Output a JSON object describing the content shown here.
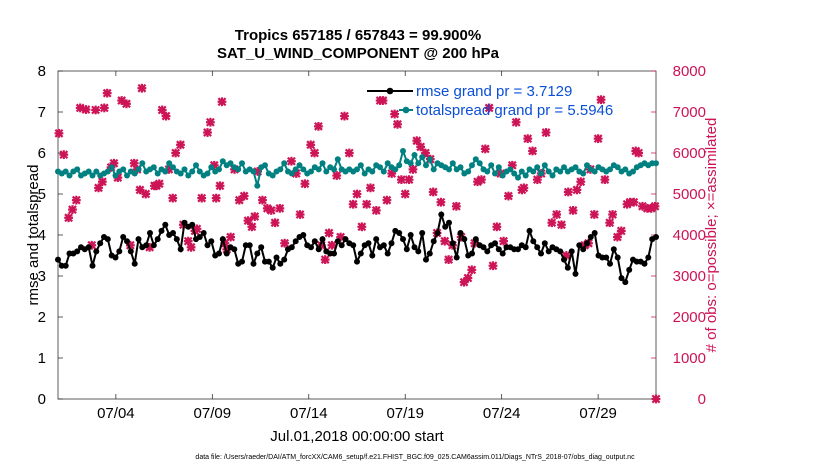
{
  "chart_data": {
    "type": "line",
    "title": "Tropics 657185 / 657843 = 99.900%",
    "subtitle": "SAT_U_WIND_COMPONENT @ 200 hPa",
    "xlabel": "Jul.01,2018 00:00:00 start",
    "ylabel": "rmse and totalspread",
    "ylabel_right": "# of obs: o=possible; ×=assimilated",
    "xlim": [
      1,
      32
    ],
    "ylim": [
      0,
      8
    ],
    "ylim_right": [
      0,
      8000
    ],
    "x_ticks": [
      {
        "x": 4,
        "label": "07/04"
      },
      {
        "x": 9,
        "label": "07/09"
      },
      {
        "x": 14,
        "label": "07/14"
      },
      {
        "x": 19,
        "label": "07/19"
      },
      {
        "x": 24,
        "label": "07/24"
      },
      {
        "x": 29,
        "label": "07/29"
      }
    ],
    "y_ticks": [
      "0",
      "1",
      "2",
      "3",
      "4",
      "5",
      "6",
      "7",
      "8"
    ],
    "y_ticks_right": [
      "0",
      "1000",
      "2000",
      "3000",
      "4000",
      "5000",
      "6000",
      "7000",
      "8000"
    ],
    "legend": [
      {
        "name": "rmse",
        "label": "rmse grand pr = 3.7129"
      },
      {
        "name": "totalspread",
        "label": "totalspread grand pr = 5.5946"
      }
    ],
    "series": [
      {
        "name": "rmse",
        "color": "#000000",
        "values": [
          3.4,
          3.25,
          3.25,
          3.55,
          3.55,
          3.6,
          3.7,
          3.65,
          3.7,
          3.25,
          3.6,
          3.8,
          3.95,
          3.9,
          3.5,
          3.45,
          3.6,
          3.95,
          3.85,
          3.6,
          3.3,
          3.9,
          3.7,
          3.75,
          4.05,
          3.75,
          3.9,
          4.1,
          4.25,
          4.0,
          4.05,
          3.9,
          3.65,
          4.3,
          4.2,
          4.25,
          3.9,
          3.95,
          4.05,
          3.75,
          3.85,
          3.5,
          3.55,
          3.9,
          3.55,
          3.7,
          3.65,
          3.3,
          3.35,
          3.75,
          3.75,
          3.3,
          3.55,
          3.7,
          3.35,
          3.35,
          3.2,
          3.45,
          3.3,
          3.4,
          3.65,
          3.7,
          3.85,
          3.95,
          4.0,
          3.75,
          3.7,
          3.85,
          3.65,
          3.9,
          3.6,
          3.55,
          3.55,
          3.85,
          3.75,
          3.9,
          3.8,
          3.75,
          3.35,
          3.55,
          3.75,
          3.8,
          3.5,
          3.9,
          3.7,
          3.75,
          3.55,
          3.8,
          4.1,
          4.05,
          3.9,
          3.65,
          4.0,
          3.7,
          3.6,
          4.05,
          3.4,
          3.55,
          3.85,
          4.05,
          4.5,
          4.2,
          4.3,
          3.8,
          3.45,
          4.05,
          3.9,
          3.5,
          3.55,
          3.9,
          3.75,
          3.7,
          3.6,
          3.75,
          3.8,
          3.65,
          3.55,
          3.7,
          3.7,
          3.65,
          3.65,
          3.75,
          3.7,
          4.1,
          3.85,
          3.7,
          3.55,
          3.8,
          3.6,
          3.7,
          3.65,
          3.6,
          3.4,
          3.2,
          3.6,
          3.05,
          3.75,
          3.65,
          3.8,
          3.95,
          4.05,
          3.5,
          3.45,
          3.45,
          3.3,
          3.65,
          3.45,
          2.95,
          2.85,
          3.15,
          3.4,
          3.35,
          3.35,
          3.3,
          3.45,
          3.9,
          3.95
        ]
      },
      {
        "name": "totalspread",
        "color": "#008080",
        "values": [
          5.55,
          5.5,
          5.55,
          5.45,
          5.55,
          5.6,
          5.45,
          5.5,
          5.55,
          5.45,
          5.55,
          5.45,
          5.5,
          5.55,
          5.65,
          5.45,
          5.55,
          5.6,
          5.45,
          5.55,
          5.5,
          5.6,
          5.75,
          5.55,
          5.6,
          5.65,
          5.5,
          5.6,
          5.55,
          5.75,
          5.65,
          5.55,
          5.5,
          5.6,
          5.45,
          5.55,
          5.7,
          5.55,
          5.45,
          5.5,
          5.65,
          5.55,
          5.6,
          5.8,
          5.7,
          5.75,
          5.65,
          5.6,
          5.75,
          5.55,
          5.6,
          5.55,
          5.2,
          5.65,
          5.7,
          5.5,
          5.45,
          5.55,
          5.6,
          5.75,
          5.55,
          5.5,
          5.6,
          5.7,
          5.6,
          5.5,
          5.55,
          5.65,
          5.6,
          5.75,
          5.55,
          5.65,
          5.6,
          5.85,
          5.6,
          5.55,
          5.6,
          5.55,
          5.6,
          5.7,
          5.5,
          5.6,
          5.55,
          5.7,
          5.65,
          5.55,
          5.75,
          5.65,
          5.6,
          5.7,
          6.05,
          5.8,
          5.75,
          5.95,
          5.75,
          5.9,
          5.7,
          5.85,
          5.6,
          5.75,
          5.7,
          5.65,
          5.6,
          5.75,
          5.6,
          5.65,
          5.5,
          5.55,
          5.7,
          5.85,
          5.75,
          5.6,
          5.55,
          5.7,
          5.5,
          5.65,
          5.45,
          5.55,
          5.6,
          5.5,
          5.4,
          5.55,
          5.45,
          5.6,
          5.55,
          5.65,
          5.5,
          5.7,
          5.55,
          5.45,
          5.6,
          5.55,
          5.65,
          5.55,
          5.6,
          5.65,
          5.55,
          5.5,
          5.7,
          5.6,
          5.55,
          5.65,
          5.6,
          5.55,
          5.6,
          5.7,
          5.65,
          5.55,
          5.6,
          5.5,
          5.55,
          5.65,
          5.7,
          5.75,
          5.7,
          5.75,
          5.75
        ]
      },
      {
        "name": "obs_count",
        "color": "#cc1456",
        "marker": "x",
        "points": [
          [
            1.05,
            6480
          ],
          [
            1.3,
            5960
          ],
          [
            1.55,
            4420
          ],
          [
            1.75,
            4620
          ],
          [
            1.95,
            4850
          ],
          [
            2.15,
            7100
          ],
          [
            2.45,
            7060
          ],
          [
            2.75,
            3750
          ],
          [
            2.95,
            7050
          ],
          [
            3.1,
            5150
          ],
          [
            3.3,
            5300
          ],
          [
            3.4,
            7100
          ],
          [
            3.55,
            7460
          ],
          [
            3.75,
            5650
          ],
          [
            3.9,
            5750
          ],
          [
            4.1,
            5400
          ],
          [
            4.3,
            7280
          ],
          [
            4.55,
            7200
          ],
          [
            4.75,
            3750
          ],
          [
            4.95,
            5750
          ],
          [
            5.1,
            5600
          ],
          [
            5.25,
            5100
          ],
          [
            5.35,
            7580
          ],
          [
            5.55,
            5000
          ],
          [
            5.75,
            3700
          ],
          [
            6.0,
            5200
          ],
          [
            6.1,
            5200
          ],
          [
            6.25,
            5250
          ],
          [
            6.4,
            7050
          ],
          [
            6.6,
            6900
          ],
          [
            6.75,
            5600
          ],
          [
            6.95,
            4900
          ],
          [
            7.1,
            6000
          ],
          [
            7.35,
            6200
          ],
          [
            7.5,
            4250
          ],
          [
            7.75,
            3850
          ],
          [
            7.9,
            3700
          ],
          [
            8.1,
            4100
          ],
          [
            8.2,
            4150
          ],
          [
            8.45,
            4900
          ],
          [
            8.75,
            6500
          ],
          [
            8.9,
            6750
          ],
          [
            9.1,
            5700
          ],
          [
            9.2,
            4900
          ],
          [
            9.4,
            5200
          ],
          [
            9.5,
            7250
          ],
          [
            9.65,
            3800
          ],
          [
            9.75,
            3650
          ],
          [
            9.95,
            3950
          ],
          [
            10.15,
            5600
          ],
          [
            10.4,
            4850
          ],
          [
            10.65,
            4950
          ],
          [
            10.85,
            4350
          ],
          [
            11.05,
            4200
          ],
          [
            11.2,
            4450
          ],
          [
            11.35,
            5550
          ],
          [
            11.6,
            4850
          ],
          [
            11.85,
            4650
          ],
          [
            12.05,
            4600
          ],
          [
            12.25,
            4300
          ],
          [
            12.5,
            4650
          ],
          [
            12.75,
            3800
          ],
          [
            13.1,
            5800
          ],
          [
            13.35,
            5500
          ],
          [
            13.55,
            4500
          ],
          [
            13.8,
            5250
          ],
          [
            14.1,
            6200
          ],
          [
            14.3,
            6000
          ],
          [
            14.5,
            6650
          ],
          [
            14.65,
            3750
          ],
          [
            14.85,
            3400
          ],
          [
            15.05,
            4050
          ],
          [
            15.2,
            3750
          ],
          [
            15.45,
            5450
          ],
          [
            15.65,
            3950
          ],
          [
            15.85,
            6900
          ],
          [
            16.1,
            6000
          ],
          [
            16.3,
            4750
          ],
          [
            16.5,
            5000
          ],
          [
            16.75,
            4200
          ],
          [
            17.0,
            4750
          ],
          [
            17.2,
            5150
          ],
          [
            17.5,
            4600
          ],
          [
            17.7,
            7280
          ],
          [
            17.85,
            7280
          ],
          [
            18.05,
            4850
          ],
          [
            18.3,
            5500
          ],
          [
            18.45,
            6950
          ],
          [
            18.6,
            6700
          ],
          [
            18.8,
            5350
          ],
          [
            19.0,
            5000
          ],
          [
            19.2,
            5350
          ],
          [
            19.4,
            5600
          ],
          [
            19.6,
            6300
          ],
          [
            19.8,
            6150
          ],
          [
            20.05,
            6000
          ],
          [
            20.3,
            5850
          ],
          [
            20.45,
            5050
          ],
          [
            20.65,
            4050
          ],
          [
            20.85,
            4800
          ],
          [
            21.05,
            3850
          ],
          [
            21.25,
            3400
          ],
          [
            21.45,
            3750
          ],
          [
            21.65,
            4700
          ],
          [
            21.9,
            3950
          ],
          [
            22.05,
            2850
          ],
          [
            22.25,
            2950
          ],
          [
            22.45,
            3150
          ],
          [
            22.6,
            3800
          ],
          [
            22.75,
            5300
          ],
          [
            22.95,
            5350
          ],
          [
            23.15,
            6100
          ],
          [
            23.35,
            7100
          ],
          [
            23.55,
            3250
          ],
          [
            23.75,
            4200
          ],
          [
            23.95,
            5500
          ],
          [
            24.1,
            3850
          ],
          [
            24.35,
            4950
          ],
          [
            24.55,
            5700
          ],
          [
            24.75,
            6750
          ],
          [
            25.05,
            5100
          ],
          [
            25.15,
            5150
          ],
          [
            25.35,
            6350
          ],
          [
            25.6,
            6050
          ],
          [
            25.85,
            5350
          ],
          [
            26.05,
            5500
          ],
          [
            26.3,
            6500
          ],
          [
            26.6,
            4300
          ],
          [
            26.85,
            4500
          ],
          [
            27.1,
            4250
          ],
          [
            27.35,
            3500
          ],
          [
            27.45,
            5050
          ],
          [
            27.7,
            4600
          ],
          [
            27.9,
            5100
          ],
          [
            28.1,
            5300
          ],
          [
            28.3,
            3750
          ],
          [
            28.5,
            3800
          ],
          [
            28.6,
            5600
          ],
          [
            28.8,
            4500
          ],
          [
            29.0,
            6350
          ],
          [
            29.15,
            7300
          ],
          [
            29.35,
            5350
          ],
          [
            29.6,
            4300
          ],
          [
            29.75,
            4500
          ],
          [
            30.0,
            3950
          ],
          [
            30.2,
            4100
          ],
          [
            30.5,
            4750
          ],
          [
            30.65,
            4800
          ],
          [
            30.85,
            4800
          ],
          [
            30.95,
            6050
          ],
          [
            31.1,
            6000
          ],
          [
            31.3,
            4700
          ],
          [
            31.55,
            4650
          ],
          [
            31.75,
            4650
          ],
          [
            31.95,
            4700
          ],
          [
            32.0,
            0
          ]
        ]
      }
    ]
  },
  "footer": {
    "text": "data file: /Users/raeder/DAI/ATM_forcXX/CAM6_setup/f.e21.FHIST_BGC.f09_025.CAM6assim.011/Diags_NTrS_2018-07/obs_diag_output.nc"
  }
}
